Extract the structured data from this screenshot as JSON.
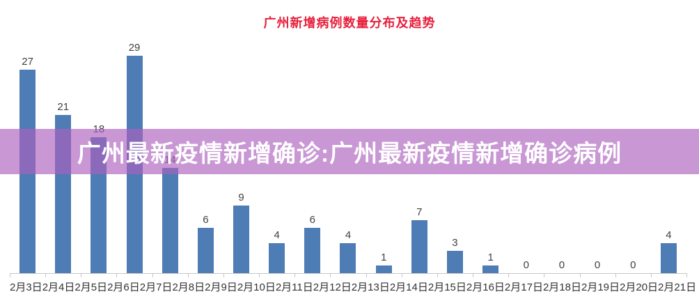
{
  "title": "广州新增病例数量分布及趋势",
  "banner": {
    "text": "广州最新疫情新增确诊:广州最新疫情新增确诊病例"
  },
  "chart_data": {
    "type": "bar",
    "title": "广州新增病例数量分布及趋势",
    "categories": [
      "2月3日",
      "2月4日",
      "2月5日",
      "2月6日",
      "2月7日",
      "2月8日",
      "2月9日",
      "2月10日",
      "2月11日",
      "2月12日",
      "2月13日",
      "2月14日",
      "2月15日",
      "2月16日",
      "2月17日",
      "2月18日",
      "2月19日",
      "2月20日",
      "2月21日"
    ],
    "values": [
      27,
      21,
      18,
      29,
      14,
      6,
      9,
      4,
      6,
      4,
      1,
      7,
      3,
      1,
      0,
      0,
      0,
      0,
      4
    ],
    "xlabel": "",
    "ylabel": "",
    "ylim": [
      0,
      30
    ],
    "grid": false,
    "legend": "none",
    "value_labels": true
  },
  "colors": {
    "title_text": "#e7203c",
    "bar_fill": "#4e7cb5",
    "value_label_text": "#404040",
    "x_label_text": "#333333",
    "axis_line": "#c6c6c6",
    "banner_background": "rgba(172,97,190,0.66)",
    "banner_text": "#ffffff",
    "page_background": "#ffffff"
  }
}
